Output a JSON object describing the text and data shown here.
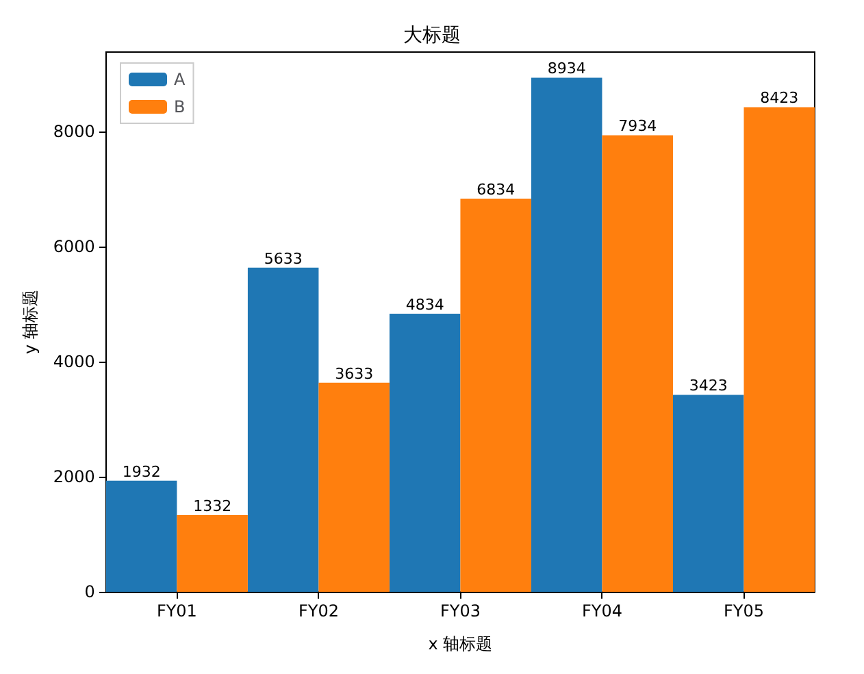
{
  "chart_data": {
    "type": "bar",
    "title": "大标题",
    "xlabel": "x 轴标题",
    "ylabel": "y 轴标题",
    "categories": [
      "FY01",
      "FY02",
      "FY03",
      "FY04",
      "FY05"
    ],
    "series": [
      {
        "name": "A",
        "color": "#1f77b4",
        "values": [
          1932,
          5633,
          4834,
          8934,
          3423
        ]
      },
      {
        "name": "B",
        "color": "#ff7f0e",
        "values": [
          1332,
          3633,
          6834,
          7934,
          8423
        ]
      }
    ],
    "ylim": [
      0,
      9380
    ],
    "yticks": [
      0,
      2000,
      4000,
      6000,
      8000
    ],
    "data_labels": true,
    "legend": "top left",
    "grid": false
  }
}
